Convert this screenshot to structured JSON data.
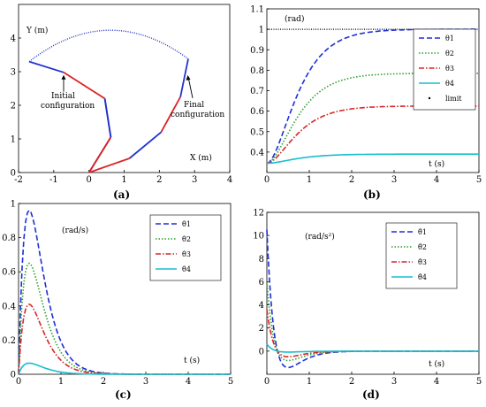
{
  "chart_data": [
    {
      "id": "a",
      "type": "line",
      "caption": "(a)",
      "xlabel": "X (m)",
      "ylabel": "Y (m)",
      "xlim": [
        -2,
        4
      ],
      "ylim": [
        0,
        5
      ],
      "xticks": [
        -2,
        -1,
        0,
        1,
        2,
        3,
        4
      ],
      "yticks": [
        0,
        1,
        2,
        3,
        4
      ],
      "series": [
        {
          "role": "initial",
          "color": "#dd2222",
          "x": [
            0,
            0.62,
            0.45,
            -0.72,
            -1.7
          ],
          "y": [
            0,
            1.05,
            2.2,
            2.98,
            3.3
          ]
        },
        {
          "role": "initial-tip",
          "color": "#2233cc",
          "x": [
            -0.72,
            -1.7
          ],
          "y": [
            2.98,
            3.3
          ]
        },
        {
          "role": "blue-links",
          "color": "#2233cc",
          "x": [
            0,
            0.62,
            0.45,
            -0.72
          ],
          "y": [
            0,
            1.05,
            2.2,
            2.98
          ]
        },
        {
          "role": "final-red",
          "color": "#dd2222",
          "x": [
            0,
            1.15,
            2.05,
            2.6
          ],
          "y": [
            0,
            0.42,
            1.2,
            2.25
          ]
        },
        {
          "role": "final-blue",
          "color": "#2233cc",
          "x": [
            1.15,
            2.05,
            2.6,
            2.82,
            2.75
          ],
          "y": [
            0.42,
            1.2,
            2.25,
            2.95,
            3.38
          ]
        },
        {
          "role": "final-base",
          "color": "#2233cc",
          "x": [
            0,
            1.15
          ],
          "y": [
            0,
            0.42
          ]
        },
        {
          "role": "end-effector-path",
          "color": "#2233cc",
          "dotted": true
        }
      ],
      "annotations": [
        {
          "text": "Initial",
          "text2": "configuration"
        },
        {
          "text": "Final",
          "text2": "configuration"
        }
      ]
    },
    {
      "id": "b",
      "type": "line",
      "caption": "(b)",
      "unit": "(rad)",
      "xlabel": "t (s)",
      "xlim": [
        0,
        5
      ],
      "ylim": [
        0.3,
        1.1
      ],
      "xticks": [
        0,
        1,
        2,
        3,
        4,
        5
      ],
      "yticks": [
        0.4,
        0.5,
        0.6,
        0.7,
        0.8,
        0.9,
        1,
        1.1
      ],
      "limit": 1.0,
      "legend": [
        "θ1",
        "θ2",
        "θ3",
        "θ4",
        "limit"
      ],
      "series": [
        {
          "name": "θ1",
          "color": "#1f2fd6",
          "dash": "6,3",
          "start": 0.345,
          "final": 1.0,
          "tau": 0.42
        },
        {
          "name": "θ2",
          "color": "#2ca02c",
          "dash": "1.5,2",
          "start": 0.345,
          "final": 0.785,
          "tau": 0.42
        },
        {
          "name": "θ3",
          "color": "#d62728",
          "dash": "6,2,1.5,2",
          "start": 0.345,
          "final": 0.625,
          "tau": 0.42
        },
        {
          "name": "θ4",
          "color": "#17becf",
          "dash": "",
          "start": 0.345,
          "final": 0.39,
          "tau": 0.42
        }
      ]
    },
    {
      "id": "c",
      "type": "line",
      "caption": "(c)",
      "unit": "(rad/s)",
      "xlabel": "t (s)",
      "xlim": [
        0,
        5
      ],
      "ylim": [
        0,
        1.0
      ],
      "xticks": [
        0,
        1,
        2,
        3,
        4,
        5
      ],
      "yticks": [
        0,
        0.2,
        0.4,
        0.6,
        0.8,
        1
      ],
      "legend": [
        "θ̇1",
        "θ̇2",
        "θ̇3",
        "θ̇4"
      ],
      "series": [
        {
          "name": "θ̇1",
          "color": "#1f2fd6",
          "dash": "6,3",
          "peak": 0.96,
          "tpeak": 0.25
        },
        {
          "name": "θ̇2",
          "color": "#2ca02c",
          "dash": "1.5,2",
          "peak": 0.65,
          "tpeak": 0.25
        },
        {
          "name": "θ̇3",
          "color": "#d62728",
          "dash": "6,2,1.5,2",
          "peak": 0.41,
          "tpeak": 0.25
        },
        {
          "name": "θ̇4",
          "color": "#17becf",
          "dash": "",
          "peak": 0.065,
          "tpeak": 0.25
        }
      ]
    },
    {
      "id": "d",
      "type": "line",
      "caption": "(d)",
      "unit": "(rad/s²)",
      "xlabel": "t (s)",
      "xlim": [
        0,
        5
      ],
      "ylim": [
        -2,
        12
      ],
      "xticks": [
        0,
        1,
        2,
        3,
        4,
        5
      ],
      "yticks": [
        0,
        2,
        4,
        6,
        8,
        10,
        12
      ],
      "legend": [
        "θ̈1",
        "θ̈2",
        "θ̈3",
        "θ̈4"
      ],
      "series": [
        {
          "name": "θ̈1",
          "color": "#1f2fd6",
          "dash": "6,3",
          "a0": 10.5,
          "trough": -1.4
        },
        {
          "name": "θ̈2",
          "color": "#2ca02c",
          "dash": "1.5,2",
          "a0": 6.0,
          "trough": -0.9
        },
        {
          "name": "θ̈3",
          "color": "#d62728",
          "dash": "6,2,1.5,2",
          "a0": 3.6,
          "trough": -0.6
        },
        {
          "name": "θ̈4",
          "color": "#17becf",
          "dash": "",
          "a0": 0.6,
          "trough": -0.1
        }
      ]
    }
  ]
}
